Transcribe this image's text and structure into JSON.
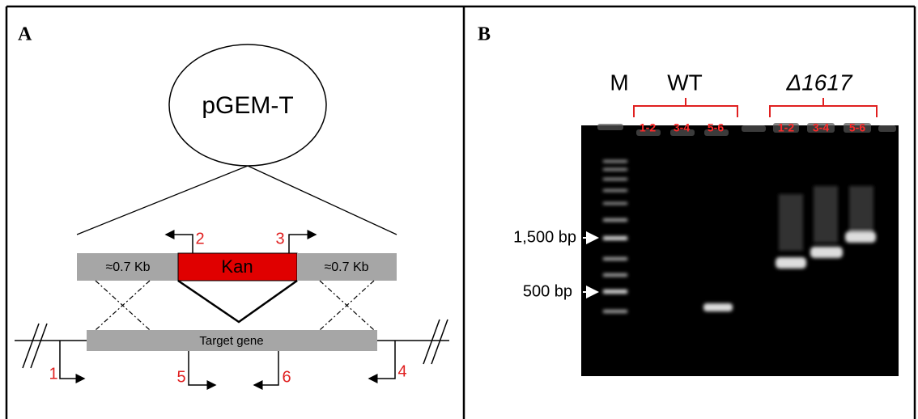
{
  "panel_a": {
    "label": "A",
    "plasmid": "pGEM-T",
    "left_arm": "≈0.7 Kb",
    "cassette": "Kan",
    "right_arm": "≈0.7 Kb",
    "target": "Target gene",
    "primers": [
      "1",
      "2",
      "3",
      "4",
      "5",
      "6"
    ]
  },
  "panel_b": {
    "label": "B",
    "marker": "M",
    "groups": [
      {
        "name": "WT",
        "lanes": [
          "1-2",
          "3-4",
          "5-6"
        ]
      },
      {
        "name": "Δ1617",
        "lanes": [
          "1-2",
          "3-4",
          "5-6"
        ]
      }
    ],
    "size_labels": [
      "1,500 bp",
      "500 bp"
    ]
  }
}
